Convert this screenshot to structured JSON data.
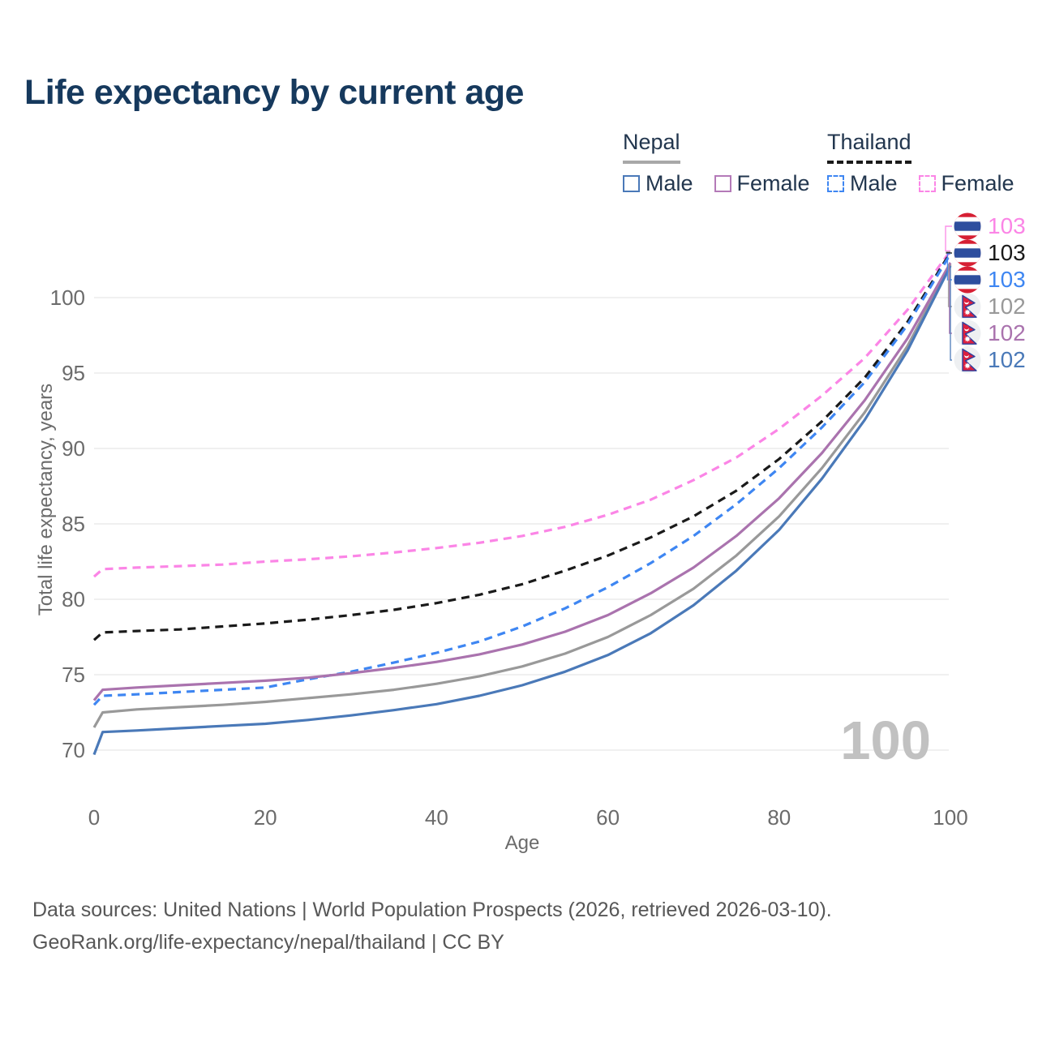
{
  "title": "Life expectancy by current age",
  "legend": {
    "groups": [
      {
        "country": "Nepal",
        "underline_style": "solid",
        "underline_color": "#a8a8a8",
        "items": [
          {
            "label": "Male",
            "color": "#4a79b8",
            "box_style": "solid"
          },
          {
            "label": "Female",
            "color": "#b47ab8",
            "box_style": "solid"
          }
        ]
      },
      {
        "country": "Thailand",
        "underline_style": "dashed",
        "underline_color": "#1a1a1a",
        "items": [
          {
            "label": "Male",
            "color": "#3e86f2",
            "box_style": "dashed"
          },
          {
            "label": "Female",
            "color": "#fb85e6",
            "box_style": "dashed"
          }
        ]
      }
    ]
  },
  "chart_data": {
    "type": "line",
    "title": "Life expectancy by current age",
    "xlabel": "Age",
    "ylabel": "Total life expectancy, years",
    "xticks": [
      0,
      20,
      40,
      60,
      80,
      100
    ],
    "yticks": [
      70,
      75,
      80,
      85,
      90,
      95,
      100
    ],
    "xlim": [
      0,
      100
    ],
    "ylim": [
      68,
      104.5
    ],
    "grid": "horizontal",
    "watermark": "100",
    "ages": [
      0,
      1,
      5,
      10,
      15,
      20,
      25,
      30,
      35,
      40,
      45,
      50,
      55,
      60,
      65,
      70,
      75,
      80,
      85,
      90,
      95,
      100
    ],
    "series": [
      {
        "name": "Thailand Female",
        "country": "Thailand",
        "sex": "Female",
        "color": "#fb85e6",
        "style": "dashed",
        "flag": "thailand-flag-icon",
        "end_label": "103",
        "values": [
          81.5,
          82.0,
          82.1,
          82.2,
          82.3,
          82.5,
          82.65,
          82.85,
          83.1,
          83.4,
          83.75,
          84.2,
          84.8,
          85.6,
          86.6,
          87.9,
          89.4,
          91.3,
          93.5,
          96.0,
          99.2,
          103.1
        ]
      },
      {
        "name": "Thailand Both sexes",
        "country": "Thailand",
        "sex": "Both sexes",
        "color": "#1a1a1a",
        "style": "dashed",
        "flag": "thailand-flag-icon",
        "end_label": "103",
        "values": [
          77.3,
          77.8,
          77.9,
          78.0,
          78.2,
          78.4,
          78.65,
          78.95,
          79.3,
          79.75,
          80.3,
          81.0,
          81.9,
          82.9,
          84.1,
          85.5,
          87.2,
          89.3,
          91.8,
          94.7,
          98.4,
          103.0
        ]
      },
      {
        "name": "Thailand Male",
        "country": "Thailand",
        "sex": "Male",
        "color": "#3e86f2",
        "style": "dashed",
        "flag": "thailand-flag-icon",
        "end_label": "103",
        "values": [
          73.0,
          73.6,
          73.7,
          73.85,
          74.0,
          74.15,
          74.7,
          75.2,
          75.8,
          76.45,
          77.2,
          78.2,
          79.4,
          80.8,
          82.4,
          84.2,
          86.3,
          88.7,
          91.4,
          94.4,
          98.2,
          102.9
        ]
      },
      {
        "name": "Nepal Both sexes",
        "country": "Nepal",
        "sex": "Both sexes",
        "color": "#999999",
        "style": "solid",
        "flag": "nepal-flag-icon",
        "end_label": "102",
        "values": [
          71.5,
          72.5,
          72.7,
          72.85,
          73.0,
          73.2,
          73.45,
          73.7,
          74.0,
          74.4,
          74.9,
          75.55,
          76.4,
          77.5,
          78.95,
          80.7,
          82.9,
          85.5,
          88.7,
          92.4,
          96.8,
          102.2
        ]
      },
      {
        "name": "Nepal Female",
        "country": "Nepal",
        "sex": "Female",
        "color": "#aa73ae",
        "style": "solid",
        "flag": "nepal-flag-icon",
        "end_label": "102",
        "values": [
          73.3,
          74.0,
          74.15,
          74.3,
          74.45,
          74.6,
          74.8,
          75.1,
          75.45,
          75.85,
          76.35,
          77.0,
          77.85,
          78.95,
          80.4,
          82.1,
          84.2,
          86.7,
          89.7,
          93.2,
          97.3,
          102.3
        ]
      },
      {
        "name": "Nepal Male",
        "country": "Nepal",
        "sex": "Male",
        "color": "#4a79b8",
        "style": "solid",
        "flag": "nepal-flag-icon",
        "end_label": "102",
        "values": [
          69.7,
          71.2,
          71.3,
          71.45,
          71.6,
          71.75,
          72.0,
          72.3,
          72.65,
          73.05,
          73.6,
          74.3,
          75.2,
          76.3,
          77.75,
          79.6,
          81.9,
          84.6,
          88.0,
          91.9,
          96.5,
          102.1
        ]
      }
    ]
  },
  "flag_colors": {
    "thailand_red": "#d61f33",
    "thailand_blue": "#2e4e9e",
    "nepal_crimson": "#dc1f3e",
    "nepal_border_blue": "#2f3f9d"
  },
  "footer": {
    "line1": "Data sources: United Nations | World Population Prospects (2026, retrieved 2026-03-10).",
    "line2": "GeoRank.org/life-expectancy/nepal/thailand | CC BY"
  }
}
